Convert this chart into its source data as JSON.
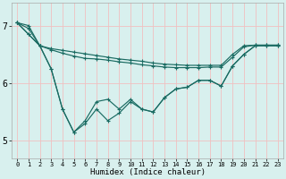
{
  "xlabel": "Humidex (Indice chaleur)",
  "bg_color": "#d8f0ee",
  "line_color": "#1a6b62",
  "grid_color": "#f0c0c0",
  "x": [
    0,
    1,
    2,
    3,
    4,
    5,
    6,
    7,
    8,
    9,
    10,
    11,
    12,
    13,
    14,
    15,
    16,
    17,
    18,
    19,
    20,
    21,
    22,
    23
  ],
  "line1": [
    7.05,
    7.0,
    6.65,
    6.6,
    6.57,
    6.54,
    6.51,
    6.48,
    6.45,
    6.42,
    6.4,
    6.38,
    6.35,
    6.33,
    6.32,
    6.31,
    6.31,
    6.31,
    6.31,
    6.5,
    6.65,
    6.66,
    6.66,
    6.66
  ],
  "line2": [
    7.05,
    6.95,
    6.65,
    6.58,
    6.52,
    6.47,
    6.43,
    6.42,
    6.4,
    6.37,
    6.35,
    6.32,
    6.3,
    6.28,
    6.27,
    6.27,
    6.27,
    6.28,
    6.28,
    6.45,
    6.63,
    6.66,
    6.66,
    6.66
  ],
  "line3": [
    7.05,
    6.85,
    6.65,
    6.25,
    5.55,
    5.15,
    5.35,
    5.68,
    5.72,
    5.55,
    5.72,
    5.55,
    5.5,
    5.75,
    5.9,
    5.93,
    6.05,
    6.05,
    5.95,
    6.3,
    6.5,
    6.65,
    6.65,
    6.65
  ],
  "line4": [
    7.05,
    6.85,
    6.65,
    6.25,
    5.55,
    5.15,
    5.3,
    5.55,
    5.35,
    5.48,
    5.68,
    5.55,
    5.5,
    5.75,
    5.9,
    5.93,
    6.05,
    6.05,
    5.95,
    6.3,
    6.5,
    6.65,
    6.65,
    6.65
  ],
  "yticks": [
    5,
    6,
    7
  ],
  "ylim": [
    4.7,
    7.4
  ],
  "xlim": [
    -0.5,
    23.5
  ]
}
